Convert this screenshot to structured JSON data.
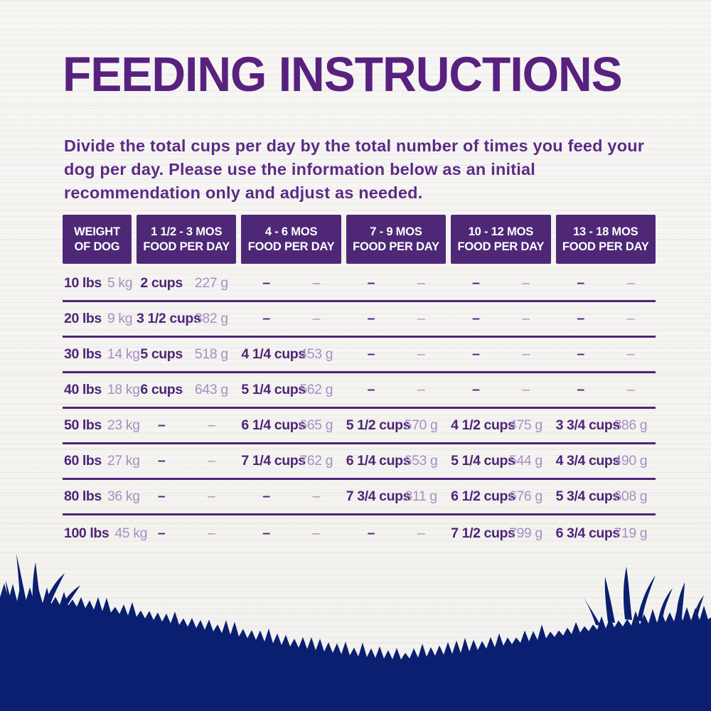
{
  "page": {
    "title": "FEEDING INSTRUCTIONS",
    "description": "Divide the total cups per day by the total number of times you feed your dog per day. Please use the information below as an initial recommendation only and adjust as needed."
  },
  "table": {
    "columns": [
      {
        "line1": "WEIGHT",
        "line2": "OF DOG"
      },
      {
        "line1": "1 1/2 - 3 MOS",
        "line2": "FOOD PER DAY"
      },
      {
        "line1": "4 - 6 MOS",
        "line2": "FOOD PER DAY"
      },
      {
        "line1": "7 - 9 MOS",
        "line2": "FOOD PER DAY"
      },
      {
        "line1": "10 - 12 MOS",
        "line2": "FOOD PER DAY"
      },
      {
        "line1": "13 - 18 MOS",
        "line2": "FOOD PER DAY"
      }
    ],
    "rows": [
      {
        "weight_lbs": "10 lbs",
        "weight_kg": "5 kg",
        "cells": [
          {
            "cups": "2 cups",
            "grams": "227 g"
          },
          {
            "cups": "–",
            "grams": "–"
          },
          {
            "cups": "–",
            "grams": "–"
          },
          {
            "cups": "–",
            "grams": "–"
          },
          {
            "cups": "–",
            "grams": "–"
          }
        ]
      },
      {
        "weight_lbs": "20 lbs",
        "weight_kg": "9 kg",
        "cells": [
          {
            "cups": "3 1/2 cups",
            "grams": "382 g"
          },
          {
            "cups": "–",
            "grams": "–"
          },
          {
            "cups": "–",
            "grams": "–"
          },
          {
            "cups": "–",
            "grams": "–"
          },
          {
            "cups": "–",
            "grams": "–"
          }
        ]
      },
      {
        "weight_lbs": "30 lbs",
        "weight_kg": "14 kg",
        "cells": [
          {
            "cups": "5 cups",
            "grams": "518 g"
          },
          {
            "cups": "4 1/4 cups",
            "grams": "453 g"
          },
          {
            "cups": "–",
            "grams": "–"
          },
          {
            "cups": "–",
            "grams": "–"
          },
          {
            "cups": "–",
            "grams": "–"
          }
        ]
      },
      {
        "weight_lbs": "40 lbs",
        "weight_kg": "18 kg",
        "cells": [
          {
            "cups": "6 cups",
            "grams": "643 g"
          },
          {
            "cups": "5 1/4 cups",
            "grams": "562 g"
          },
          {
            "cups": "–",
            "grams": "–"
          },
          {
            "cups": "–",
            "grams": "–"
          },
          {
            "cups": "–",
            "grams": "–"
          }
        ]
      },
      {
        "weight_lbs": "50 lbs",
        "weight_kg": "23 kg",
        "cells": [
          {
            "cups": "–",
            "grams": "–"
          },
          {
            "cups": "6 1/4 cups",
            "grams": "665 g"
          },
          {
            "cups": "5 1/2 cups",
            "grams": "570 g"
          },
          {
            "cups": "4 1/2 cups",
            "grams": "475 g"
          },
          {
            "cups": "3 3/4 cups",
            "grams": "386 g"
          }
        ]
      },
      {
        "weight_lbs": "60 lbs",
        "weight_kg": "27 kg",
        "cells": [
          {
            "cups": "–",
            "grams": "–"
          },
          {
            "cups": "7 1/4 cups",
            "grams": "762 g"
          },
          {
            "cups": "6 1/4 cups",
            "grams": "653 g"
          },
          {
            "cups": "5 1/4 cups",
            "grams": "544 g"
          },
          {
            "cups": "4 3/4 cups",
            "grams": "490 g"
          }
        ]
      },
      {
        "weight_lbs": "80 lbs",
        "weight_kg": "36 kg",
        "cells": [
          {
            "cups": "–",
            "grams": "–"
          },
          {
            "cups": "–",
            "grams": "–"
          },
          {
            "cups": "7 3/4 cups",
            "grams": "811 g"
          },
          {
            "cups": "6 1/2 cups",
            "grams": "676 g"
          },
          {
            "cups": "5 3/4 cups",
            "grams": "608 g"
          }
        ]
      },
      {
        "weight_lbs": "100 lbs",
        "weight_kg": "45 kg",
        "cells": [
          {
            "cups": "–",
            "grams": "–"
          },
          {
            "cups": "–",
            "grams": "–"
          },
          {
            "cups": "–",
            "grams": "–"
          },
          {
            "cups": "7 1/2 cups",
            "grams": "799 g"
          },
          {
            "cups": "6 3/4 cups",
            "grams": "719 g"
          }
        ]
      }
    ]
  },
  "colors": {
    "title_purple": "#58217f",
    "body_purple": "#5c2b87",
    "header_box_purple": "#4e2876",
    "value_dark_purple": "#4e2478",
    "value_light_purple": "#a58fc4",
    "grass_navy": "#0a1f70"
  }
}
